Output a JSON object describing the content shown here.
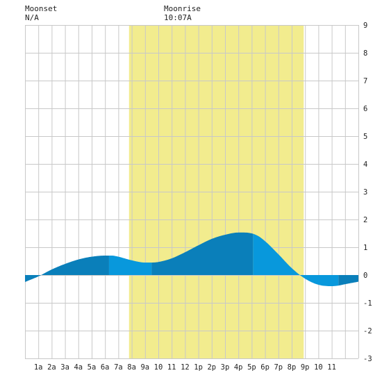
{
  "header": {
    "moonset_label": "Moonset",
    "moonset_value": "N/A",
    "moonrise_label": "Moonrise",
    "moonrise_value": "10:07A"
  },
  "colors": {
    "daylight": "#f2ec8e",
    "tide_dark": "#0a7fba",
    "tide_light": "#0898dc",
    "grid": "#c8c8c8",
    "background": "#ffffff"
  },
  "chart_data": {
    "type": "area",
    "title": "",
    "xlabel": "",
    "ylabel": "",
    "x_range_hours": [
      -1,
      24
    ],
    "ylim": [
      -3,
      9
    ],
    "y_ticks": [
      "-3",
      "-2",
      "-1",
      "0",
      "1",
      "2",
      "3",
      "4",
      "5",
      "6",
      "7",
      "8",
      "9"
    ],
    "x_ticks": [
      "1a",
      "2a",
      "3a",
      "4a",
      "5a",
      "6a",
      "7a",
      "8a",
      "9a",
      "10",
      "11",
      "12",
      "1p",
      "2p",
      "3p",
      "4p",
      "5p",
      "6p",
      "7p",
      "8p",
      "9p",
      "10",
      "11"
    ],
    "grid": true,
    "daylight_hours": [
      6.8,
      19.9
    ],
    "series": [
      {
        "x": [
          -1,
          0,
          1,
          2,
          3,
          4,
          5,
          5.5,
          6,
          7,
          8,
          8.5,
          9,
          10,
          11,
          12,
          13,
          14,
          15,
          16,
          16.5,
          17,
          18,
          19,
          20,
          21,
          22,
          22.5,
          23,
          24
        ],
        "values": [
          -0.25,
          -0.05,
          0.2,
          0.4,
          0.56,
          0.66,
          0.7,
          0.7,
          0.66,
          0.53,
          0.45,
          0.45,
          0.47,
          0.6,
          0.82,
          1.07,
          1.3,
          1.45,
          1.53,
          1.5,
          1.4,
          1.22,
          0.75,
          0.25,
          -0.13,
          -0.35,
          -0.4,
          -0.38,
          -0.33,
          -0.24
        ]
      }
    ],
    "shading_bands_hours": [
      [
        -1,
        0.0
      ],
      [
        0.0,
        5.3
      ],
      [
        5.3,
        8.5
      ],
      [
        8.5,
        16.1
      ],
      [
        16.1,
        22.5
      ],
      [
        22.5,
        24
      ]
    ],
    "shading_bands_tone": [
      "dark",
      "dark",
      "light",
      "dark",
      "light",
      "dark"
    ]
  }
}
